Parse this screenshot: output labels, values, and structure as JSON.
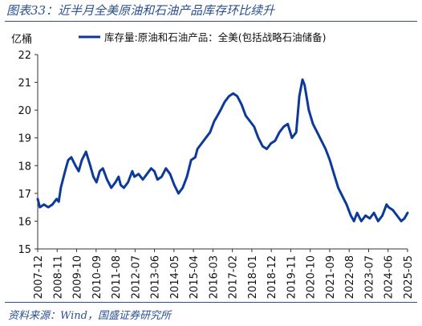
{
  "header": {
    "title": "图表33：近半月全美原油和石油产品库存环比续升"
  },
  "footer": {
    "source": "资料来源：Wind，国盛证券研究所"
  },
  "chart_data": {
    "type": "line",
    "ylabel": "亿桶",
    "ylim": [
      15,
      22
    ],
    "yticks": [
      15,
      16,
      17,
      18,
      19,
      20,
      21,
      22
    ],
    "xticks": [
      "2007-12",
      "2008-11",
      "2009-10",
      "2010-09",
      "2011-08",
      "2012-07",
      "2013-06",
      "2014-05",
      "2015-04",
      "2016-03",
      "2017-02",
      "2018-01",
      "2018-12",
      "2019-11",
      "2020-10",
      "2021-09",
      "2022-08",
      "2023-07",
      "2024-06",
      "2025-05"
    ],
    "legend": {
      "position": "top-right"
    },
    "colors": {
      "series": "#0d3a99"
    },
    "series": [
      {
        "name": "库存量:原油和石油产品：全美(包括战略石油储备)",
        "x": [
          2007.9,
          2008.0,
          2008.2,
          2008.4,
          2008.6,
          2008.8,
          2008.9,
          2009.0,
          2009.2,
          2009.35,
          2009.5,
          2009.7,
          2009.85,
          2010.0,
          2010.2,
          2010.4,
          2010.55,
          2010.7,
          2010.85,
          2011.0,
          2011.2,
          2011.4,
          2011.6,
          2011.75,
          2011.85,
          2012.0,
          2012.2,
          2012.4,
          2012.5,
          2012.7,
          2012.9,
          2013.1,
          2013.3,
          2013.45,
          2013.6,
          2013.8,
          2014.0,
          2014.2,
          2014.4,
          2014.6,
          2014.8,
          2015.0,
          2015.2,
          2015.4,
          2015.5,
          2015.7,
          2015.9,
          2016.1,
          2016.3,
          2016.45,
          2016.6,
          2016.8,
          2017.0,
          2017.2,
          2017.4,
          2017.6,
          2017.8,
          2018.0,
          2018.2,
          2018.4,
          2018.6,
          2018.8,
          2019.0,
          2019.2,
          2019.4,
          2019.6,
          2019.8,
          2020.0,
          2020.2,
          2020.35,
          2020.5,
          2020.6,
          2020.8,
          2021.0,
          2021.2,
          2021.4,
          2021.6,
          2021.8,
          2022.0,
          2022.2,
          2022.4,
          2022.6,
          2022.8,
          2022.95,
          2023.1,
          2023.3,
          2023.5,
          2023.7,
          2023.9,
          2024.1,
          2024.3,
          2024.5,
          2024.6,
          2024.8,
          2025.0,
          2025.2,
          2025.35,
          2025.5
        ],
        "values": [
          16.8,
          16.5,
          16.6,
          16.5,
          16.6,
          16.8,
          16.7,
          17.2,
          17.8,
          18.2,
          18.3,
          18.0,
          17.8,
          18.2,
          18.5,
          18.0,
          17.6,
          17.4,
          17.8,
          17.9,
          17.5,
          17.2,
          17.4,
          17.6,
          17.3,
          17.2,
          17.4,
          17.8,
          17.6,
          17.7,
          17.5,
          17.7,
          17.9,
          17.8,
          17.5,
          17.6,
          17.9,
          17.7,
          17.3,
          17.0,
          17.2,
          17.6,
          18.2,
          18.3,
          18.6,
          18.8,
          19.0,
          19.2,
          19.6,
          19.8,
          20.0,
          20.3,
          20.5,
          20.6,
          20.5,
          20.2,
          19.8,
          19.6,
          19.4,
          19.0,
          18.7,
          18.6,
          18.8,
          18.9,
          19.2,
          19.4,
          19.5,
          19.0,
          19.2,
          20.5,
          21.1,
          20.9,
          20.0,
          19.5,
          19.2,
          18.9,
          18.6,
          18.2,
          17.7,
          17.2,
          16.9,
          16.6,
          16.2,
          16.0,
          16.3,
          16.0,
          16.2,
          16.1,
          16.3,
          16.0,
          16.2,
          16.6,
          16.5,
          16.4,
          16.2,
          16.0,
          16.1,
          16.3
        ]
      }
    ]
  }
}
